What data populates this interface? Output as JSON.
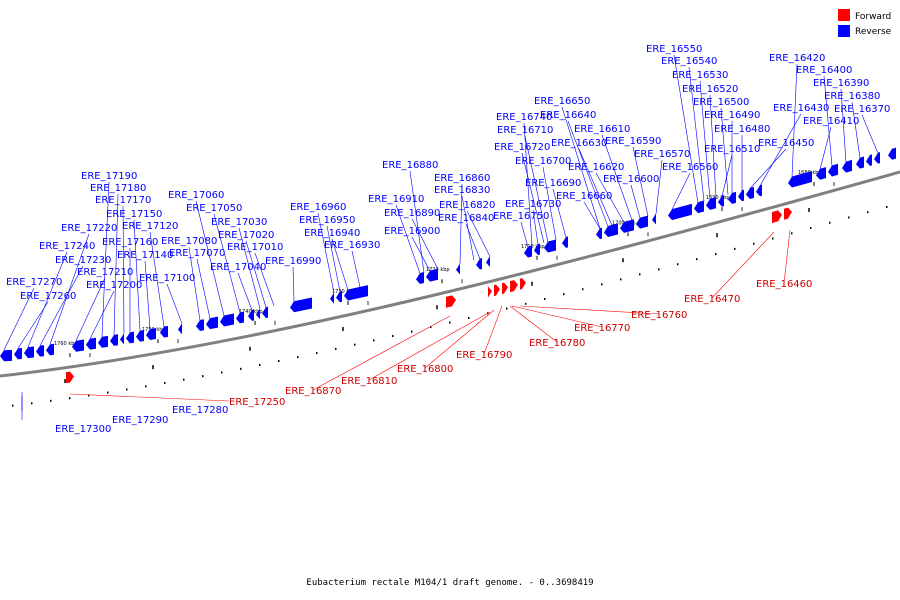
{
  "legend": {
    "forward": {
      "label": "Forward",
      "color": "#ff0000"
    },
    "reverse": {
      "label": "Reverse",
      "color": "#0000ff"
    }
  },
  "caption": "Eubacterium rectale M104/1 draft genome. - 0..3698419",
  "axis": {
    "start_kbp": 1762,
    "end_kbp": 1678,
    "color": "#808080"
  },
  "ticks": [
    {
      "kbp": 1760,
      "label": "1760 kbp"
    },
    {
      "kbp": 1750,
      "label": "1750 kbp"
    },
    {
      "kbp": 1740,
      "label": "1740 kbp"
    },
    {
      "kbp": 1730,
      "label": "1730 kbp"
    },
    {
      "kbp": 1720,
      "label": "1720 kbp"
    },
    {
      "kbp": 1710,
      "label": "1710 kbp"
    },
    {
      "kbp": 1700,
      "label": "1700 kbp"
    },
    {
      "kbp": 1690,
      "label": "1690 kbp"
    },
    {
      "kbp": 1680,
      "label": "1680 kbp"
    }
  ],
  "reverse_labels": [
    "ERE_17300",
    "ERE_17290",
    "ERE_17280",
    "ERE_17270",
    "ERE_17260",
    "ERE_17240",
    "ERE_17230",
    "ERE_17220",
    "ERE_17210",
    "ERE_17200",
    "ERE_17190",
    "ERE_17180",
    "ERE_17170",
    "ERE_17160",
    "ERE_17150",
    "ERE_17140",
    "ERE_17120",
    "ERE_17100",
    "ERE_17080",
    "ERE_17070",
    "ERE_17060",
    "ERE_17050",
    "ERE_17040",
    "ERE_17030",
    "ERE_17020",
    "ERE_17010",
    "ERE_16990",
    "ERE_16960",
    "ERE_16950",
    "ERE_16940",
    "ERE_16930",
    "ERE_16910",
    "ERE_16900",
    "ERE_16890",
    "ERE_16880",
    "ERE_16860",
    "ERE_16840",
    "ERE_16830",
    "ERE_16820",
    "ERE_16750",
    "ERE_16740",
    "ERE_16730",
    "ERE_16720",
    "ERE_16710",
    "ERE_16700",
    "ERE_16690",
    "ERE_16660",
    "ERE_16650",
    "ERE_16640",
    "ERE_16630",
    "ERE_16620",
    "ERE_16610",
    "ERE_16600",
    "ERE_16590",
    "ERE_16570",
    "ERE_16560",
    "ERE_16550",
    "ERE_16540",
    "ERE_16530",
    "ERE_16520",
    "ERE_16510",
    "ERE_16500",
    "ERE_16490",
    "ERE_16480",
    "ERE_16450",
    "ERE_16430",
    "ERE_16420",
    "ERE_16410",
    "ERE_16400",
    "ERE_16390",
    "ERE_16380",
    "ERE_16370"
  ],
  "forward_labels": [
    "ERE_17250",
    "ERE_16870",
    "ERE_16810",
    "ERE_16800",
    "ERE_16790",
    "ERE_16780",
    "ERE_16770",
    "ERE_16760",
    "ERE_16470",
    "ERE_16460"
  ]
}
